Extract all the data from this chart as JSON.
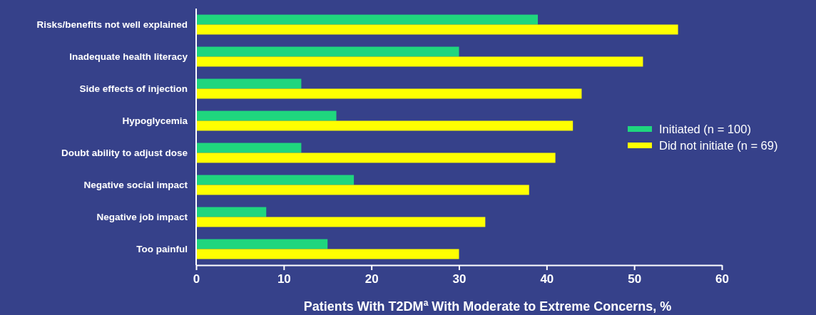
{
  "chart_data": {
    "type": "bar",
    "orientation": "horizontal",
    "categories": [
      "Risks/benefits not well explained",
      "Inadequate health literacy",
      "Side effects of injection",
      "Hypoglycemia",
      "Doubt ability to adjust dose",
      "Negative social impact",
      "Negative job impact",
      "Too painful"
    ],
    "series": [
      {
        "name": "Initiated (n = 100)",
        "color": "#1fd67e",
        "values": [
          39,
          30,
          12,
          16,
          12,
          18,
          8,
          15
        ]
      },
      {
        "name": "Did not initiate (n = 69)",
        "color": "#ffff00",
        "values": [
          55,
          51,
          44,
          43,
          41,
          38,
          33,
          30
        ]
      }
    ],
    "xlabel": "Patients With T2DM$^{a}$ With Moderate to Extreme Concerns, %",
    "xlim": [
      0,
      60
    ],
    "xticks": [
      0,
      10,
      20,
      30,
      40,
      50,
      60
    ],
    "grid": false,
    "legend": "right"
  }
}
